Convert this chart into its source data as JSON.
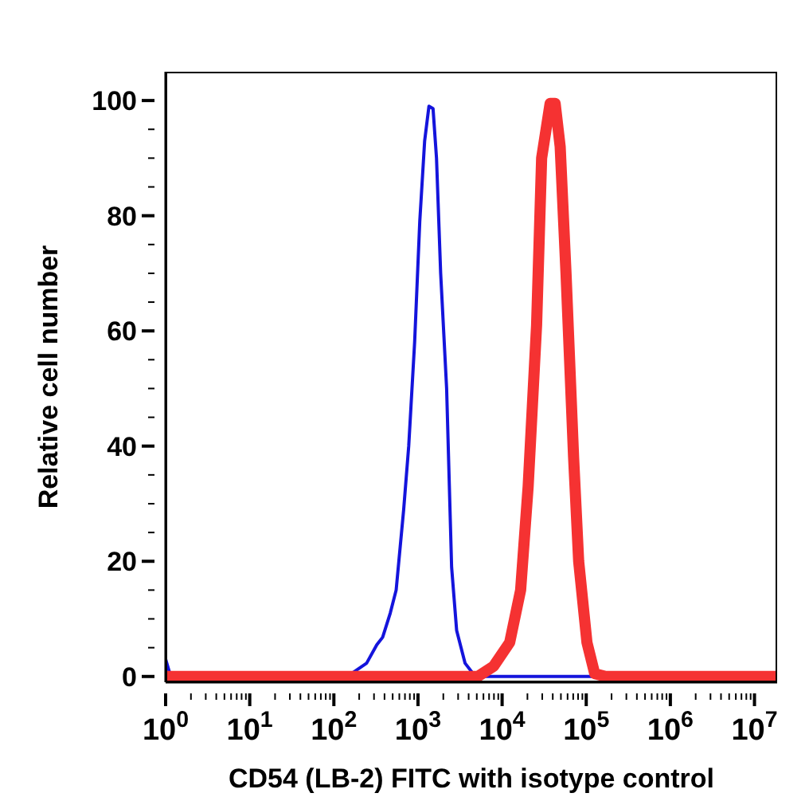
{
  "chart_data": {
    "type": "line",
    "xlabel": "CD54 (LB-2) FITC with isotype control",
    "ylabel": "Relative cell number",
    "log": "x",
    "marker": "none",
    "line_style": "solid",
    "xlim": [
      1,
      18600000
    ],
    "ylim": [
      -1,
      105
    ],
    "xticks": [
      {
        "value": 1,
        "label": "10$^{0}$"
      },
      {
        "value": 2,
        "label": null
      },
      {
        "value": 3,
        "label": null
      },
      {
        "value": 4,
        "label": null
      },
      {
        "value": 5,
        "label": null
      },
      {
        "value": 6,
        "label": null
      },
      {
        "value": 7,
        "label": null
      },
      {
        "value": 8,
        "label": null
      },
      {
        "value": 9,
        "label": null
      },
      {
        "value": 10,
        "label": "10$^{1}$"
      },
      {
        "value": 20,
        "label": null
      },
      {
        "value": 30,
        "label": null
      },
      {
        "value": 40,
        "label": null
      },
      {
        "value": 50,
        "label": null
      },
      {
        "value": 60,
        "label": null
      },
      {
        "value": 70,
        "label": null
      },
      {
        "value": 80,
        "label": null
      },
      {
        "value": 90,
        "label": null
      },
      {
        "value": 100,
        "label": "10$^{2}$"
      },
      {
        "value": 200,
        "label": null
      },
      {
        "value": 300,
        "label": null
      },
      {
        "value": 400,
        "label": null
      },
      {
        "value": 500,
        "label": null
      },
      {
        "value": 600,
        "label": null
      },
      {
        "value": 700,
        "label": null
      },
      {
        "value": 800,
        "label": null
      },
      {
        "value": 900,
        "label": null
      },
      {
        "value": 1000,
        "label": "10$^{3}$"
      },
      {
        "value": 2000,
        "label": null
      },
      {
        "value": 3000,
        "label": null
      },
      {
        "value": 4000,
        "label": null
      },
      {
        "value": 5000,
        "label": null
      },
      {
        "value": 6000,
        "label": null
      },
      {
        "value": 7000,
        "label": null
      },
      {
        "value": 8000,
        "label": null
      },
      {
        "value": 9000,
        "label": null
      },
      {
        "value": 10000,
        "label": "10$^{4}$"
      },
      {
        "value": 20000,
        "label": null
      },
      {
        "value": 30000,
        "label": null
      },
      {
        "value": 40000,
        "label": null
      },
      {
        "value": 50000,
        "label": null
      },
      {
        "value": 60000,
        "label": null
      },
      {
        "value": 70000,
        "label": null
      },
      {
        "value": 80000,
        "label": null
      },
      {
        "value": 90000,
        "label": null
      },
      {
        "value": 100000,
        "label": "10$^{5}$"
      },
      {
        "value": 200000,
        "label": null
      },
      {
        "value": 300000,
        "label": null
      },
      {
        "value": 400000,
        "label": null
      },
      {
        "value": 500000,
        "label": null
      },
      {
        "value": 600000,
        "label": null
      },
      {
        "value": 700000,
        "label": null
      },
      {
        "value": 800000,
        "label": null
      },
      {
        "value": 900000,
        "label": null
      },
      {
        "value": 1000000,
        "label": "10$^{6}$"
      },
      {
        "value": 2000000,
        "label": null
      },
      {
        "value": 3000000,
        "label": null
      },
      {
        "value": 4000000,
        "label": null
      },
      {
        "value": 5000000,
        "label": null
      },
      {
        "value": 6000000,
        "label": null
      },
      {
        "value": 7000000,
        "label": null
      },
      {
        "value": 8000000,
        "label": null
      },
      {
        "value": 9000000,
        "label": null
      },
      {
        "value": 10000000,
        "label": "10$^{7}$"
      }
    ],
    "yticks": [
      0,
      {
        "value": 5,
        "label": null
      },
      {
        "value": 10,
        "label": null
      },
      {
        "value": 15,
        "label": null
      },
      20,
      {
        "value": 25,
        "label": null
      },
      {
        "value": 30,
        "label": null
      },
      {
        "value": 35,
        "label": null
      },
      40,
      {
        "value": 45,
        "label": null
      },
      {
        "value": 50,
        "label": null
      },
      {
        "value": 55,
        "label": null
      },
      60,
      {
        "value": 65,
        "label": null
      },
      {
        "value": 70,
        "label": null
      },
      {
        "value": 75,
        "label": null
      },
      80,
      {
        "value": 85,
        "label": null
      },
      {
        "value": 90,
        "label": null
      },
      {
        "value": 95,
        "label": null
      },
      100
    ],
    "series": [
      {
        "color": "#1414dc",
        "x": [
          1,
          1.15,
          81.3,
          170,
          245,
          324,
          380,
          468,
          550,
          676,
          776,
          912,
          1050,
          1200,
          1350,
          1510,
          1660,
          1860,
          2190,
          2510,
          2880,
          3630,
          4790,
          18600000
        ],
        "values": [
          3,
          0,
          0,
          0.7,
          2.3,
          5.5,
          6.8,
          11,
          15,
          29,
          40,
          58,
          79,
          93,
          99,
          98.6,
          90,
          70,
          50,
          19,
          8,
          2.3,
          0,
          0
        ]
      },
      {
        "color": "#f53232",
        "x": [
          1,
          5130,
          7940,
          12300,
          16600,
          20400,
          25700,
          29500,
          37200,
          42700,
          49000,
          57500,
          70800,
          81300,
          102000,
          126000,
          170000,
          18600000
        ],
        "values": [
          0,
          0,
          1.8,
          5.9,
          15,
          33,
          61,
          90,
          99.5,
          99.5,
          92,
          70,
          38,
          20,
          5.9,
          0.5,
          0,
          0
        ]
      }
    ]
  }
}
